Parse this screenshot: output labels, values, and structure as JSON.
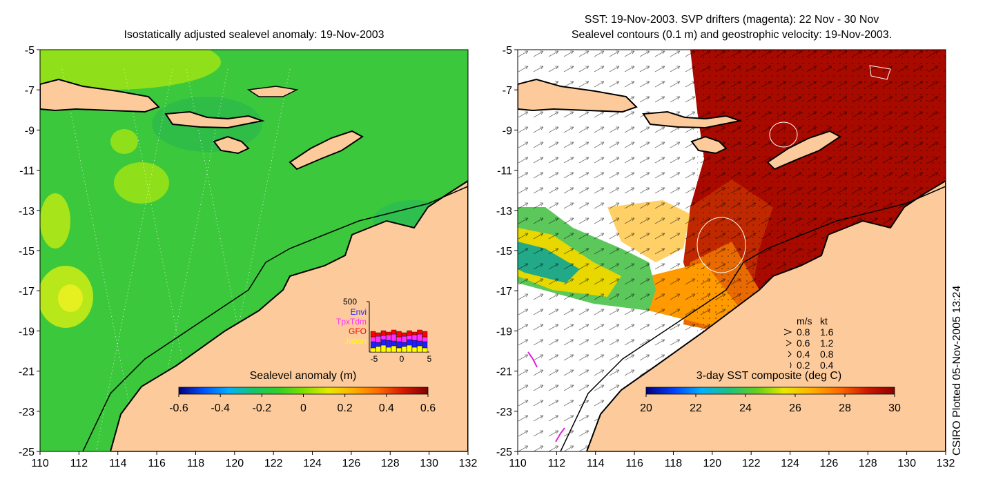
{
  "left_panel": {
    "title": "Isostatically adjusted sealevel anomaly: 19-Nov-2003",
    "colorbar": {
      "label": "Sealevel anomaly (m)",
      "min": -0.6,
      "max": 0.6,
      "ticks": [
        "-0.6",
        "-0.4",
        "-0.2",
        "0",
        "0.2",
        "0.4",
        "0.6"
      ],
      "colors": [
        "#00007f",
        "#0052ff",
        "#00b0ff",
        "#19c46a",
        "#2ed12a",
        "#7ee000",
        "#e8e800",
        "#ffb000",
        "#ff6a00",
        "#d81800",
        "#7f0000"
      ]
    },
    "inset": {
      "ytick": "500",
      "xticks": [
        "-5",
        "0",
        "5"
      ],
      "legend": [
        {
          "name": "Envi",
          "color": "#2020ff"
        },
        {
          "name": "TpxTdm",
          "color": "#ff30ff"
        },
        {
          "name": "GFO",
          "color": "#ff0000"
        },
        {
          "name": "Jason",
          "color": "#ffff00"
        }
      ]
    }
  },
  "right_panel": {
    "title_line1": "SST: 19-Nov-2003. SVP drifters (magenta): 22 Nov - 30 Nov",
    "title_line2": "Sealevel contours (0.1 m) and geostrophic velocity: 19-Nov-2003.",
    "colorbar": {
      "label": "3-day SST composite (deg C)",
      "min": 20,
      "max": 30,
      "ticks": [
        "20",
        "22",
        "24",
        "26",
        "28",
        "30"
      ],
      "colors": [
        "#00007f",
        "#0040ff",
        "#00b0ff",
        "#20c080",
        "#60d020",
        "#e8e800",
        "#ffb000",
        "#ff6a00",
        "#d01800",
        "#8b0000"
      ]
    },
    "velocity_legend": {
      "header_ms": "m/s",
      "header_kt": "kt",
      "rows": [
        {
          "ms": "0.8",
          "kt": "1.6"
        },
        {
          "ms": "0.6",
          "kt": "1.2"
        },
        {
          "ms": "0.4",
          "kt": "0.8"
        },
        {
          "ms": "0.2",
          "kt": "0.4"
        }
      ]
    }
  },
  "axes": {
    "lon_ticks": [
      "110",
      "112",
      "114",
      "116",
      "118",
      "120",
      "122",
      "124",
      "126",
      "128",
      "130",
      "132"
    ],
    "lat_ticks": [
      "-5",
      "-7",
      "-9",
      "-11",
      "-13",
      "-15",
      "-17",
      "-19",
      "-21",
      "-23",
      "-25"
    ]
  },
  "credit": "CSIRO Plotted 05-Nov-2005 13:24",
  "colors": {
    "land": "#fdcb9b",
    "ocean_base": "#32c832",
    "sst_warm": "#a80a00"
  }
}
